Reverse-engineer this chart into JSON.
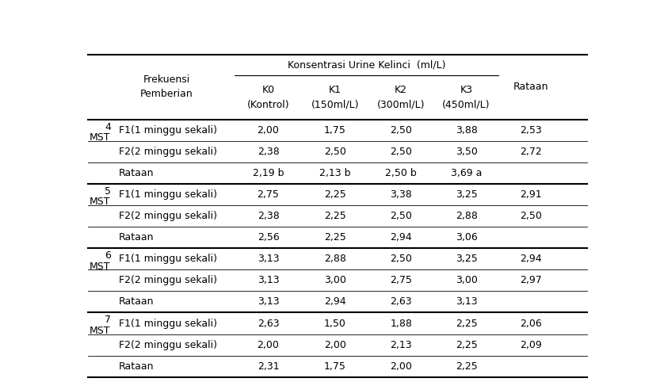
{
  "rows": [
    [
      "4",
      "MST",
      "F1(1 minggu sekali)",
      "2,00",
      "1,75",
      "2,50",
      "3,88",
      "2,53"
    ],
    [
      "",
      "",
      "F2(2 minggu sekali)",
      "2,38",
      "2,50",
      "2,50",
      "3,50",
      "2,72"
    ],
    [
      "",
      "",
      "Rataan",
      "2,19 b",
      "2,13 b",
      "2,50 b",
      "3,69 a",
      ""
    ],
    [
      "5",
      "MST",
      "F1(1 minggu sekali)",
      "2,75",
      "2,25",
      "3,38",
      "3,25",
      "2,91"
    ],
    [
      "",
      "",
      "F2(2 minggu sekali)",
      "2,38",
      "2,25",
      "2,50",
      "2,88",
      "2,50"
    ],
    [
      "",
      "",
      "Rataan",
      "2,56",
      "2,25",
      "2,94",
      "3,06",
      ""
    ],
    [
      "6",
      "MST",
      "F1(1 minggu sekali)",
      "3,13",
      "2,88",
      "2,50",
      "3,25",
      "2,94"
    ],
    [
      "",
      "",
      "F2(2 minggu sekali)",
      "3,13",
      "3,00",
      "2,75",
      "3,00",
      "2,97"
    ],
    [
      "",
      "",
      "Rataan",
      "3,13",
      "2,94",
      "2,63",
      "3,13",
      ""
    ],
    [
      "7",
      "MST",
      "F1(1 minggu sekali)",
      "2,63",
      "1,50",
      "1,88",
      "2,25",
      "2,06"
    ],
    [
      "",
      "",
      "F2(2 minggu sekali)",
      "2,00",
      "2,00",
      "2,13",
      "2,25",
      "2,09"
    ],
    [
      "",
      "",
      "Rataan",
      "2,31",
      "1,75",
      "2,00",
      "2,25",
      ""
    ]
  ],
  "bg_color": "#ffffff",
  "text_color": "#000000",
  "font_size": 9.0,
  "header_font_size": 9.0
}
